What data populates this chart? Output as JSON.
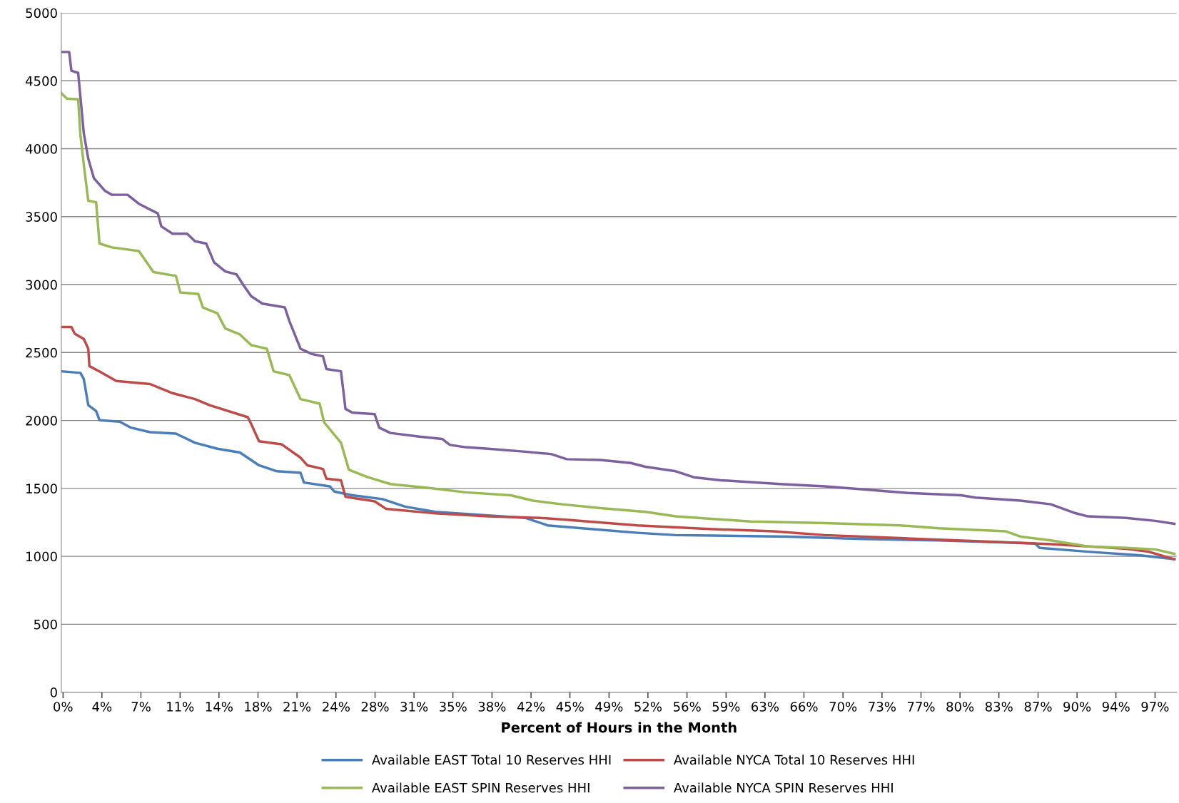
{
  "chart_data": {
    "type": "line",
    "xlabel": "Percent of Hours in the Month",
    "xlim": [
      0,
      99.3
    ],
    "ylim": [
      0,
      5000
    ],
    "yticks": [
      0,
      500,
      1000,
      1500,
      2000,
      2500,
      3000,
      3500,
      4000,
      4500,
      5000
    ],
    "xticks": [
      {
        "value": 0.15,
        "label": "0%"
      },
      {
        "value": 3.62,
        "label": "4%"
      },
      {
        "value": 7.09,
        "label": "7%"
      },
      {
        "value": 10.57,
        "label": "11%"
      },
      {
        "value": 14.04,
        "label": "14%"
      },
      {
        "value": 17.51,
        "label": "18%"
      },
      {
        "value": 20.98,
        "label": "21%"
      },
      {
        "value": 24.46,
        "label": "24%"
      },
      {
        "value": 27.93,
        "label": "28%"
      },
      {
        "value": 31.4,
        "label": "31%"
      },
      {
        "value": 34.87,
        "label": "35%"
      },
      {
        "value": 38.34,
        "label": "38%"
      },
      {
        "value": 41.82,
        "label": "42%"
      },
      {
        "value": 45.29,
        "label": "45%"
      },
      {
        "value": 48.76,
        "label": "49%"
      },
      {
        "value": 52.23,
        "label": "52%"
      },
      {
        "value": 55.71,
        "label": "56%"
      },
      {
        "value": 59.18,
        "label": "59%"
      },
      {
        "value": 62.65,
        "label": "63%"
      },
      {
        "value": 66.12,
        "label": "66%"
      },
      {
        "value": 69.59,
        "label": "70%"
      },
      {
        "value": 73.07,
        "label": "73%"
      },
      {
        "value": 76.54,
        "label": "77%"
      },
      {
        "value": 80.01,
        "label": "80%"
      },
      {
        "value": 83.48,
        "label": "83%"
      },
      {
        "value": 86.96,
        "label": "87%"
      },
      {
        "value": 90.43,
        "label": "90%"
      },
      {
        "value": 93.9,
        "label": "94%"
      },
      {
        "value": 97.37,
        "label": "97%"
      }
    ],
    "grid": "y",
    "legend": "bottom",
    "marker": "none",
    "line_style": "solid",
    "series": [
      {
        "name": "Available EAST Total 10 Reserves HHI",
        "color": "#4a7ebb",
        "x": [
          0,
          1.7,
          2.0,
          2.4,
          3.1,
          3.4,
          5.2,
          6.2,
          7.9,
          10.2,
          11.9,
          13.9,
          15.9,
          17.6,
          19.2,
          21.3,
          21.6,
          23.9,
          24.3,
          25.9,
          28.6,
          30.6,
          33.3,
          37.3,
          41.3,
          43.3,
          47.3,
          51.3,
          54.7,
          64.7,
          71.4,
          78.1,
          86.7,
          87.1,
          91.4,
          96.1,
          99.1
        ],
        "values": [
          2362,
          2350,
          2306,
          2113,
          2069,
          2002,
          1991,
          1947,
          1914,
          1903,
          1836,
          1792,
          1764,
          1670,
          1626,
          1615,
          1543,
          1515,
          1477,
          1449,
          1421,
          1366,
          1327,
          1305,
          1283,
          1228,
          1200,
          1173,
          1156,
          1145,
          1128,
          1117,
          1095,
          1062,
          1034,
          1007,
          979
        ]
      },
      {
        "name": "Available NYCA Total 10 Reserves HHI",
        "color": "#be4b48",
        "x": [
          0,
          0.9,
          1.2,
          2.0,
          2.4,
          2.5,
          3.5,
          4.9,
          7.9,
          9.9,
          11.9,
          13.2,
          16.6,
          16.9,
          17.6,
          19.6,
          21.3,
          21.9,
          23.3,
          23.6,
          24.9,
          25.3,
          27.9,
          28.9,
          33.3,
          38.0,
          42.6,
          45.3,
          51.3,
          58.0,
          63.4,
          68.0,
          74.7,
          81.4,
          88.1,
          94.8,
          96.8,
          99.1
        ],
        "values": [
          2688,
          2688,
          2638,
          2600,
          2528,
          2400,
          2356,
          2290,
          2268,
          2201,
          2157,
          2113,
          2024,
          1975,
          1847,
          1825,
          1726,
          1670,
          1643,
          1571,
          1560,
          1438,
          1405,
          1350,
          1316,
          1294,
          1283,
          1267,
          1228,
          1200,
          1184,
          1156,
          1134,
          1112,
          1090,
          1056,
          1034,
          979
        ]
      },
      {
        "name": "Available EAST SPIN Reserves HHI",
        "color": "#98b954",
        "x": [
          0,
          0.5,
          1.5,
          1.7,
          2.0,
          2.4,
          3.1,
          3.4,
          4.5,
          6.9,
          7.6,
          8.2,
          10.2,
          10.6,
          12.2,
          12.6,
          13.9,
          14.6,
          15.9,
          16.9,
          18.3,
          18.9,
          20.3,
          21.3,
          23.0,
          23.4,
          24.9,
          25.6,
          27.3,
          29.3,
          32.6,
          36.0,
          40.0,
          42.0,
          44.6,
          48.0,
          52.0,
          54.7,
          61.4,
          68.0,
          74.7,
          78.1,
          84.1,
          85.4,
          88.1,
          91.4,
          94.8,
          97.4,
          99.1
        ],
        "values": [
          4408,
          4369,
          4364,
          4104,
          3883,
          3617,
          3606,
          3302,
          3274,
          3247,
          3164,
          3092,
          3064,
          2942,
          2931,
          2832,
          2788,
          2677,
          2633,
          2555,
          2528,
          2362,
          2334,
          2157,
          2124,
          1986,
          1836,
          1637,
          1582,
          1532,
          1504,
          1471,
          1449,
          1410,
          1383,
          1355,
          1327,
          1294,
          1256,
          1244,
          1228,
          1206,
          1184,
          1145,
          1117,
          1073,
          1062,
          1051,
          1018
        ]
      },
      {
        "name": "Available NYCA SPIN Reserves HHI",
        "color": "#7d60a0",
        "x": [
          0,
          0.7,
          0.9,
          1.5,
          1.7,
          2.0,
          2.4,
          2.9,
          3.9,
          4.5,
          5.9,
          6.9,
          8.6,
          8.9,
          9.9,
          11.2,
          11.9,
          12.9,
          13.6,
          14.6,
          15.6,
          16.2,
          16.9,
          17.9,
          19.9,
          20.3,
          21.3,
          22.3,
          23.3,
          23.6,
          24.9,
          25.3,
          25.9,
          27.9,
          28.3,
          29.3,
          31.9,
          33.9,
          34.6,
          36.0,
          38.0,
          41.3,
          43.6,
          45.0,
          48.0,
          50.7,
          52.0,
          54.7,
          56.3,
          58.7,
          64.0,
          68.0,
          71.4,
          75.4,
          80.1,
          81.4,
          85.4,
          88.1,
          90.1,
          91.4,
          94.8,
          97.4,
          99.1
        ],
        "values": [
          4712,
          4712,
          4574,
          4558,
          4381,
          4115,
          3927,
          3783,
          3689,
          3661,
          3661,
          3595,
          3523,
          3429,
          3374,
          3374,
          3319,
          3302,
          3164,
          3097,
          3075,
          2998,
          2915,
          2860,
          2832,
          2732,
          2528,
          2489,
          2472,
          2378,
          2362,
          2085,
          2058,
          2046,
          1947,
          1908,
          1881,
          1864,
          1820,
          1803,
          1792,
          1770,
          1753,
          1715,
          1709,
          1687,
          1659,
          1626,
          1582,
          1560,
          1532,
          1515,
          1493,
          1466,
          1449,
          1432,
          1410,
          1383,
          1322,
          1294,
          1283,
          1261,
          1239
        ]
      }
    ]
  }
}
